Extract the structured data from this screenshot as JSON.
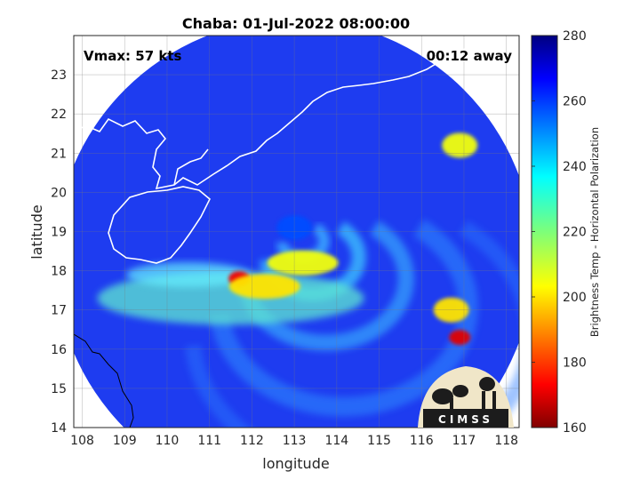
{
  "chart_data": {
    "type": "heatmap",
    "title": "Chaba: 01-Jul-2022 08:00:00",
    "xlabel": "longitude",
    "ylabel": "latitude",
    "xlim": [
      107.8,
      118.3
    ],
    "ylim": [
      14,
      24
    ],
    "xticks": [
      "108",
      "109",
      "110",
      "111",
      "112",
      "113",
      "114",
      "115",
      "116",
      "117",
      "118"
    ],
    "yticks": [
      "14",
      "15",
      "16",
      "17",
      "18",
      "19",
      "20",
      "21",
      "22",
      "23"
    ],
    "grid": true,
    "annotations": {
      "vmax": "Vmax: 57 kts",
      "time_away": "00:12 away"
    },
    "colorbar": {
      "label": "Brightness Temp - Horizontal Polarization",
      "range": [
        160,
        280
      ],
      "ticks": [
        "160",
        "180",
        "200",
        "220",
        "240",
        "260",
        "280"
      ],
      "colormap": "jet"
    },
    "swath": {
      "center": [
        113.0,
        18.3
      ],
      "radius_deg": 5.65
    },
    "features": [
      {
        "name": "eye",
        "lon": 113.0,
        "lat": 19.1,
        "value": 258
      },
      {
        "name": "rainband-core",
        "lon": 111.7,
        "lat": 17.8,
        "value": 172
      },
      {
        "name": "rainband",
        "lon": 112.3,
        "lat": 17.6,
        "value": 200
      },
      {
        "name": "rainband",
        "lon": 113.2,
        "lat": 18.2,
        "value": 205
      },
      {
        "name": "eastern-band",
        "lon": 116.9,
        "lat": 16.3,
        "value": 170
      },
      {
        "name": "eastern-band",
        "lon": 116.7,
        "lat": 17.0,
        "value": 200
      },
      {
        "name": "northeast-cell",
        "lon": 116.9,
        "lat": 21.2,
        "value": 205
      }
    ],
    "logo_text": "CIMSS"
  }
}
